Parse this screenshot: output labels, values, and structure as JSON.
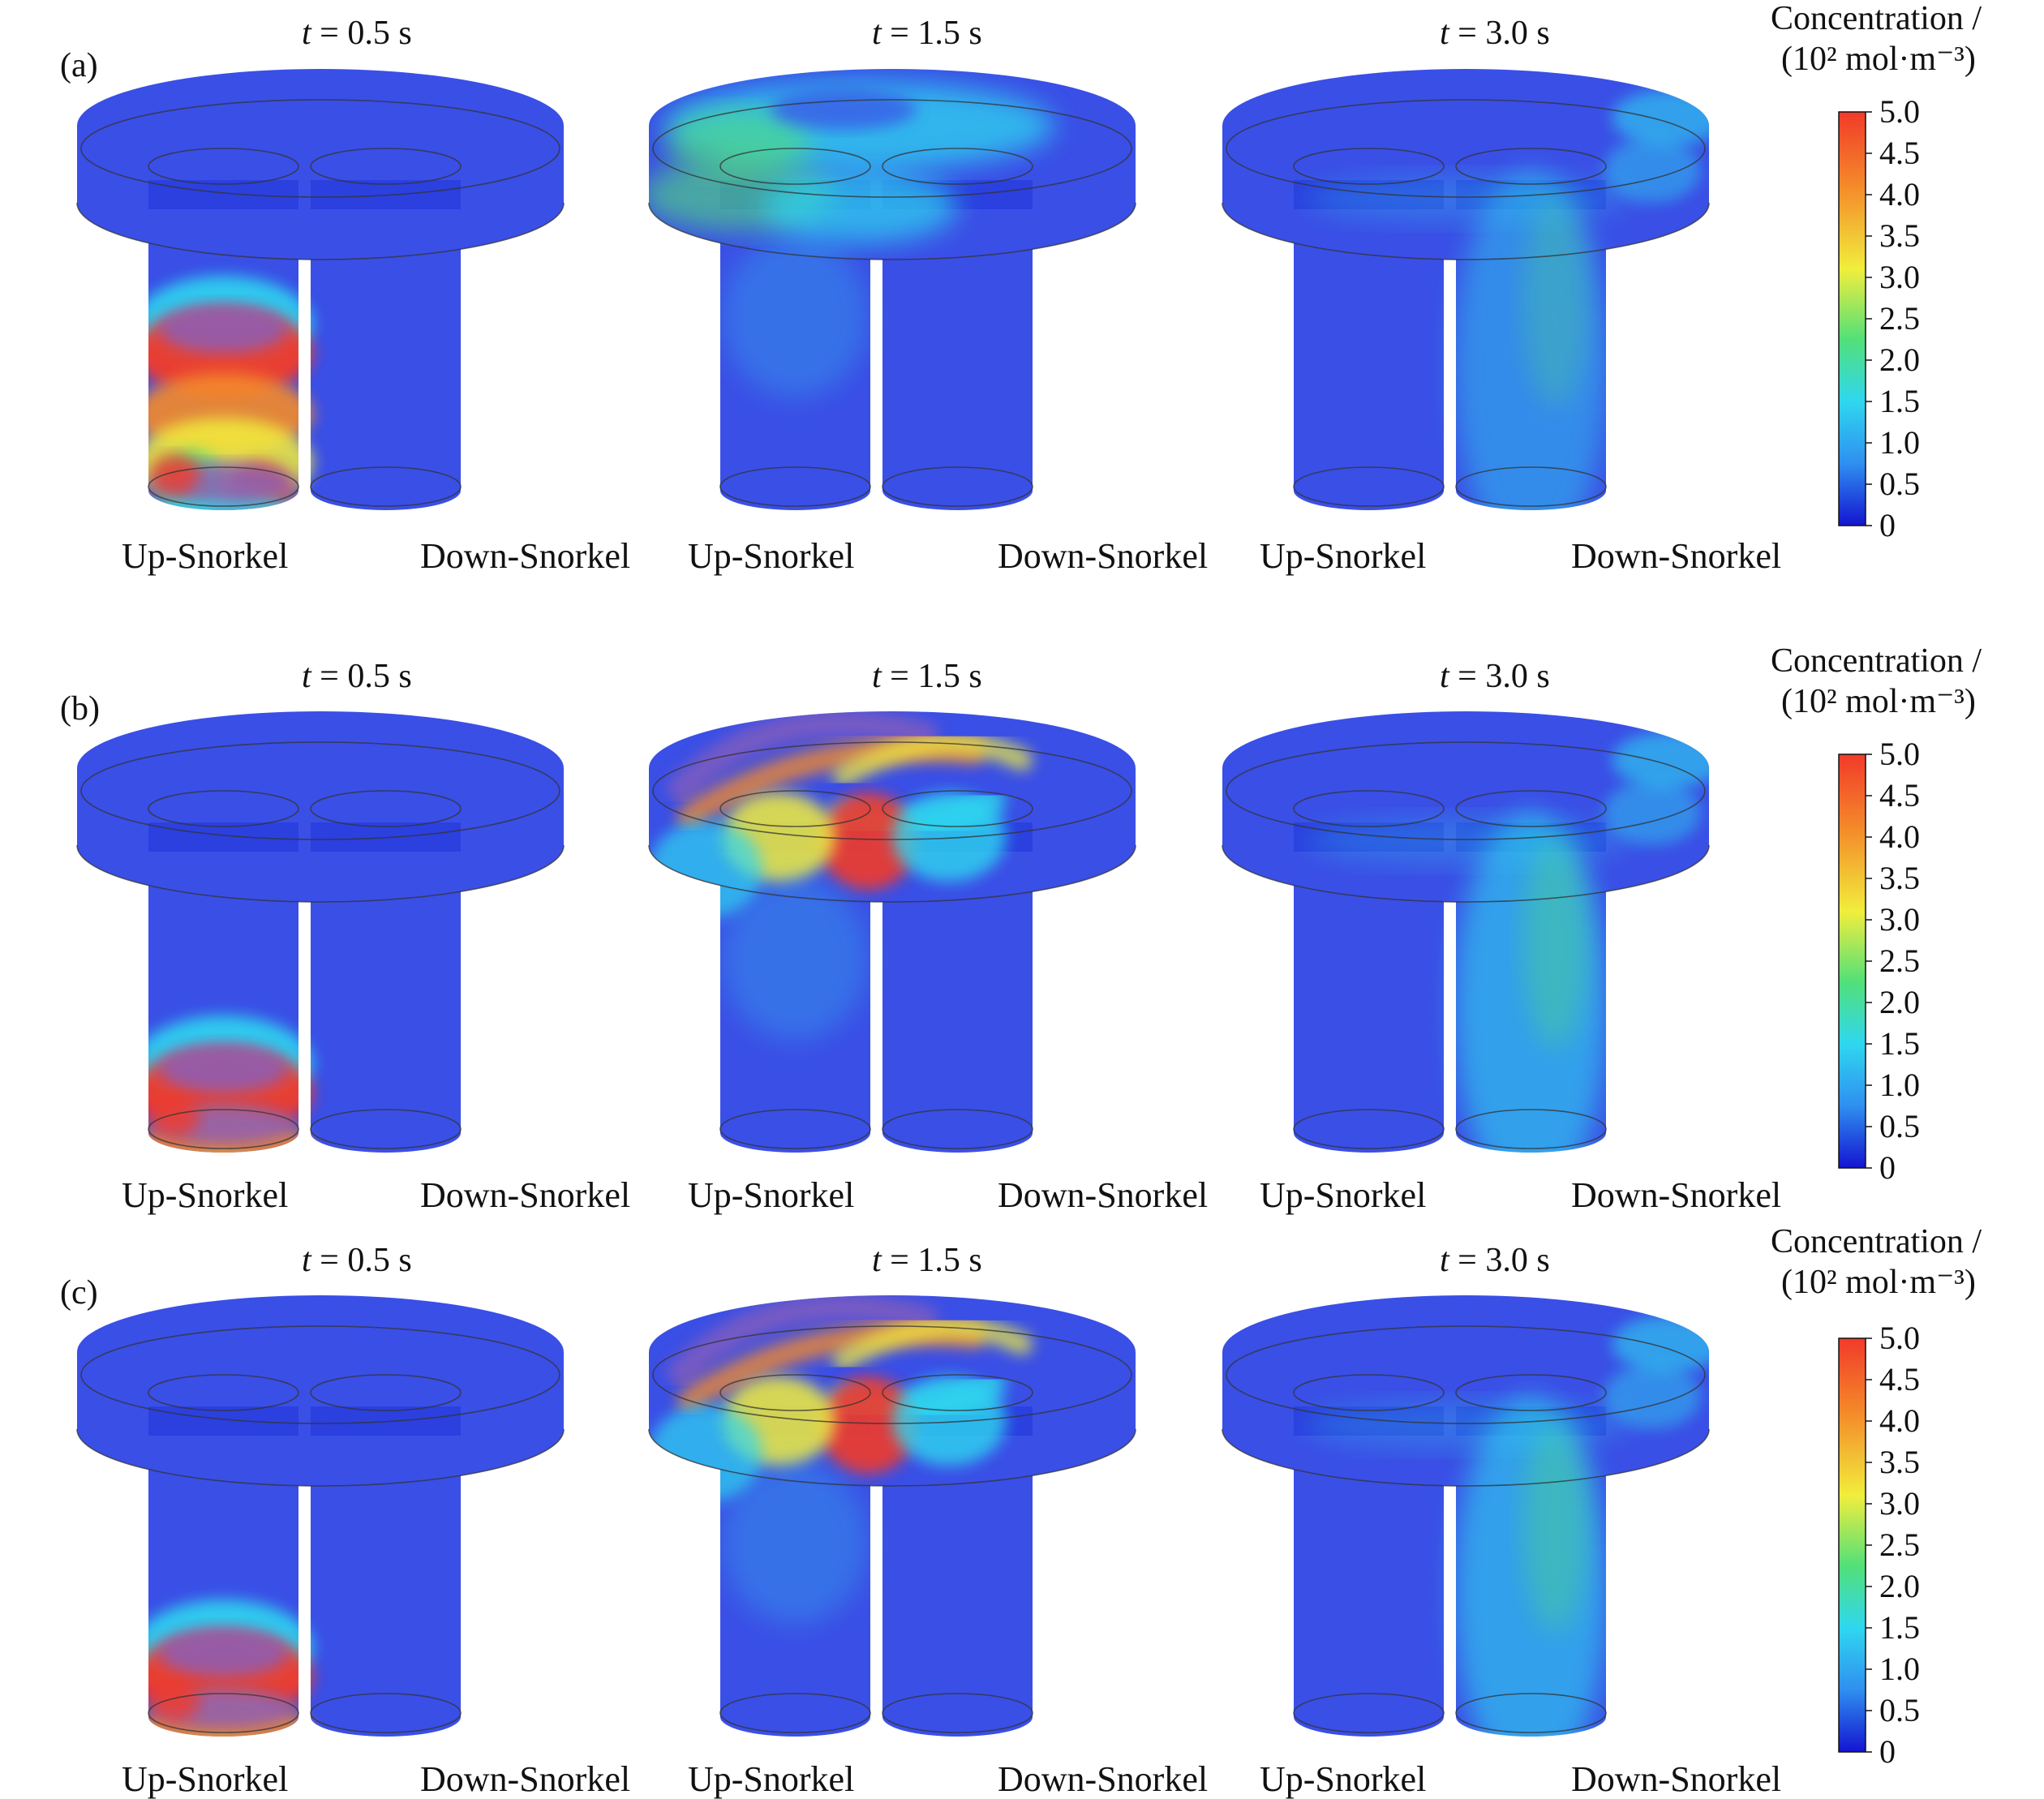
{
  "colors": {
    "base_blue": "#3a4fe6",
    "dark_blue": "#1f35d8",
    "cyan": "#2fd7ef",
    "green": "#52e079",
    "yellow": "#f1ee3c",
    "orange": "#f48a2a",
    "red": "#f23a2a",
    "purple": "#8a5fb8",
    "outline": "#333333"
  },
  "panel_labels": [
    "(a)",
    "(b)",
    "(c)"
  ],
  "time_labels": [
    {
      "var": "t",
      "rest": " = 0.5 s"
    },
    {
      "var": "t",
      "rest": " = 1.5 s"
    },
    {
      "var": "t",
      "rest": " = 3.0 s"
    }
  ],
  "snorkel_labels": {
    "up": "Up-Snorkel",
    "down": "Down-Snorkel"
  },
  "colorbar": {
    "title_line1": "Concentration /",
    "title_line2": "(10² mol·m⁻³)",
    "ticks": [
      "5.0",
      "4.5",
      "4.0",
      "3.5",
      "3.0",
      "2.5",
      "2.0",
      "1.5",
      "1.0",
      "0.5",
      "0"
    ]
  }
}
